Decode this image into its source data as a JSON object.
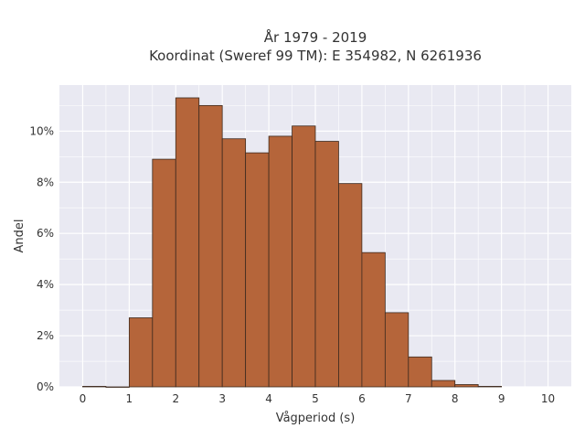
{
  "chart_data": {
    "type": "bar",
    "title_line1": "År 1979 - 2019",
    "title_line2": "Koordinat (Sweref 99 TM): E 354982, N 6261936",
    "xlabel": "Vågperiod (s)",
    "ylabel": "Andel",
    "xlim": [
      -0.5,
      10.5
    ],
    "ylim": [
      0,
      0.118
    ],
    "x_ticks": [
      0,
      1,
      2,
      3,
      4,
      5,
      6,
      7,
      8,
      9,
      10
    ],
    "y_ticks": [
      0,
      0.02,
      0.04,
      0.06,
      0.08,
      0.1
    ],
    "y_tick_labels": [
      "0%",
      "2%",
      "4%",
      "6%",
      "8%",
      "10%"
    ],
    "bin_width": 0.5,
    "bins": [
      {
        "x0": 0.0,
        "value": 0.0002
      },
      {
        "x0": 0.5,
        "value": 0.0
      },
      {
        "x0": 1.0,
        "value": 0.027
      },
      {
        "x0": 1.5,
        "value": 0.089
      },
      {
        "x0": 2.0,
        "value": 0.113
      },
      {
        "x0": 2.5,
        "value": 0.11
      },
      {
        "x0": 3.0,
        "value": 0.097
      },
      {
        "x0": 3.5,
        "value": 0.0915
      },
      {
        "x0": 4.0,
        "value": 0.098
      },
      {
        "x0": 4.5,
        "value": 0.102
      },
      {
        "x0": 5.0,
        "value": 0.096
      },
      {
        "x0": 5.5,
        "value": 0.0795
      },
      {
        "x0": 6.0,
        "value": 0.0525
      },
      {
        "x0": 6.5,
        "value": 0.029
      },
      {
        "x0": 7.0,
        "value": 0.0117
      },
      {
        "x0": 7.5,
        "value": 0.0025
      },
      {
        "x0": 8.0,
        "value": 0.0009
      },
      {
        "x0": 8.5,
        "value": 0.0002
      }
    ],
    "grid": true,
    "colors": {
      "bar_fill": "#b5653a",
      "bar_edge": "#3d2a1f",
      "plot_bg": "#e9e9f2",
      "grid": "#ffffff",
      "text": "#333333"
    }
  }
}
